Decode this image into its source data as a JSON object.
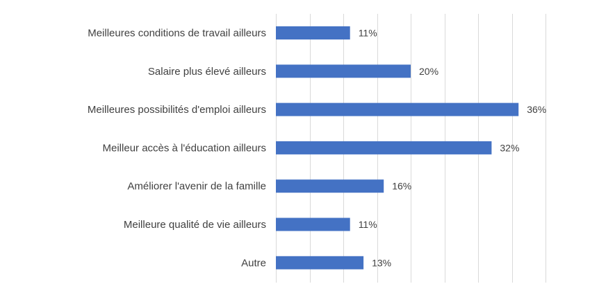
{
  "chart_data": {
    "type": "bar",
    "orientation": "horizontal",
    "categories": [
      "Meilleures conditions de travail ailleurs",
      "Salaire plus élevé ailleurs",
      "Meilleures possibilités d'emploi ailleurs",
      "Meilleur accès à l'éducation ailleurs",
      "Améliorer l'avenir de la famille",
      "Meilleure qualité de vie ailleurs",
      "Autre"
    ],
    "values": [
      11,
      20,
      36,
      32,
      16,
      11,
      13
    ],
    "value_labels": [
      "11%",
      "20%",
      "36%",
      "32%",
      "16%",
      "11%",
      "13%"
    ],
    "unit": "%",
    "xlim": [
      0,
      40
    ],
    "grid": true,
    "legend": "none",
    "bar_color": "#4472C4",
    "grid_color": "#d9d9d9",
    "text_color": "#404040"
  }
}
